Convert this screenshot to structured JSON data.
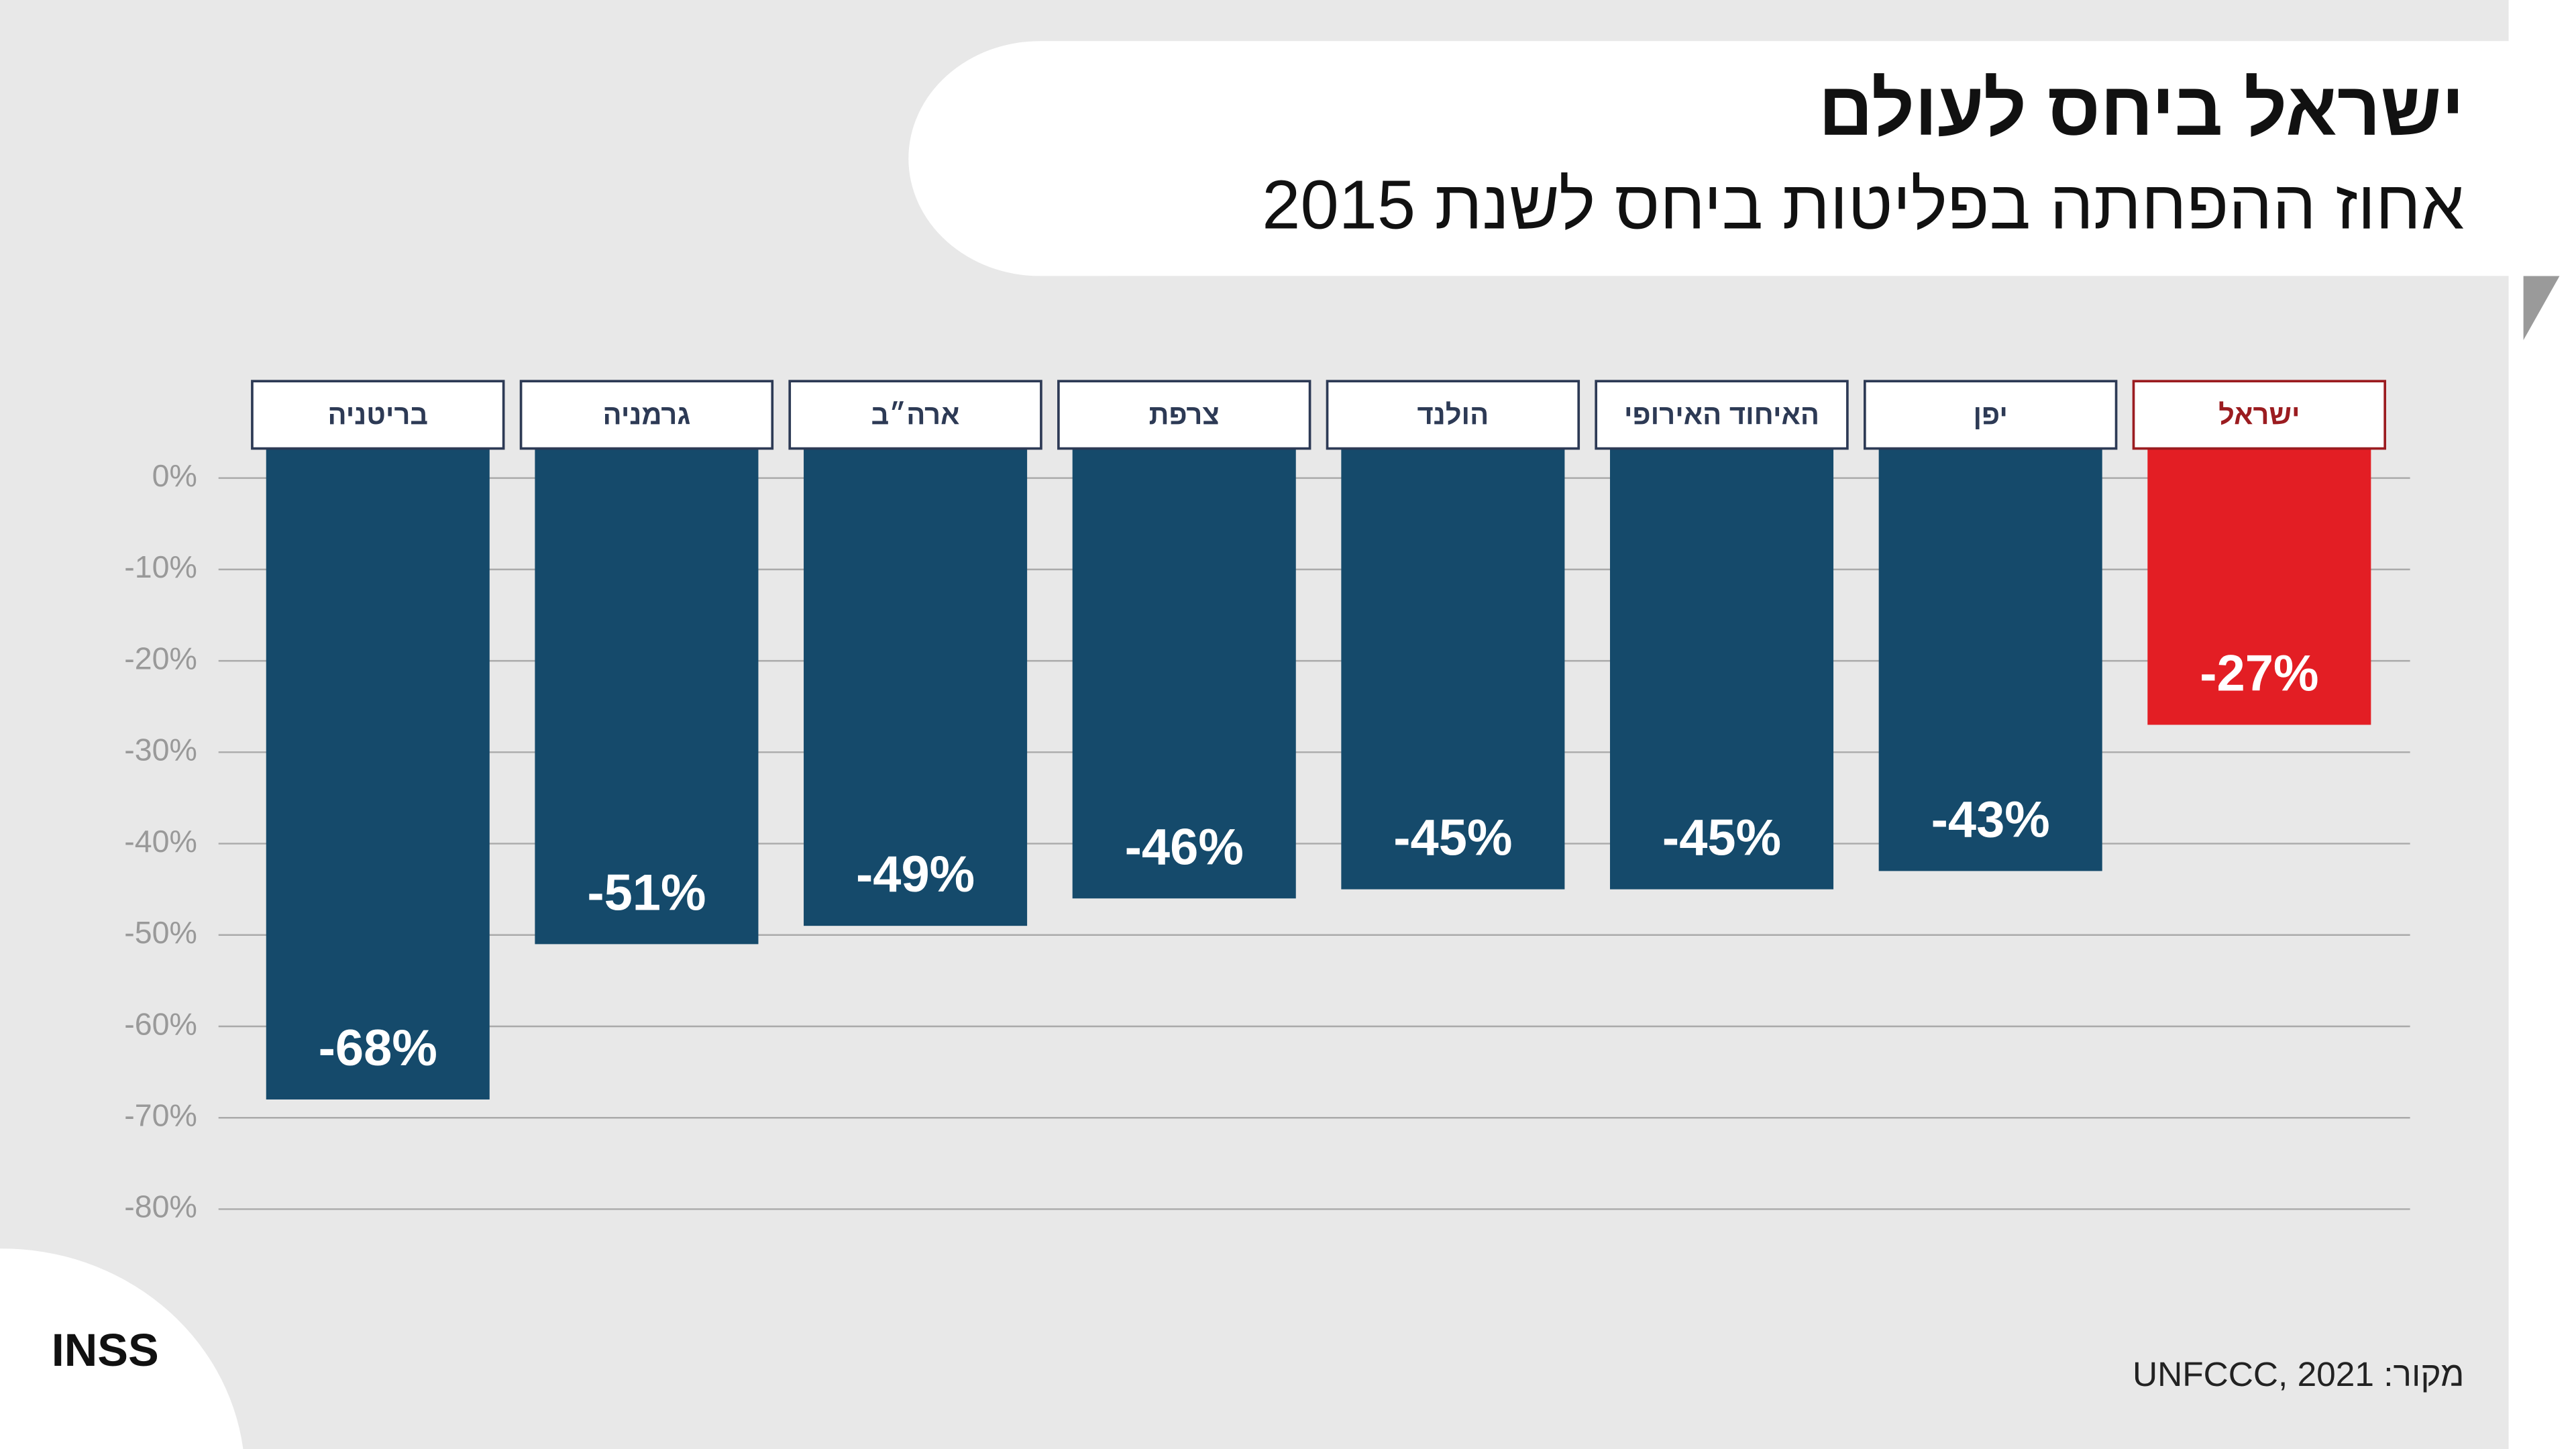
{
  "chart_data": {
    "type": "bar",
    "title": "ישראל ביחס לעולם",
    "subtitle": "אחוז ההפחתה בפליטות ביחס לשנת 2015",
    "categories": [
      "בריטניה",
      "גרמניה",
      "ארה״ב",
      "צרפת",
      "הולנד",
      "האיחוד האירופי",
      "יפן",
      "ישראל"
    ],
    "values": [
      -68,
      -51,
      -49,
      -46,
      -45,
      -45,
      -43,
      -27
    ],
    "value_labels": [
      "-68%",
      "-51%",
      "-49%",
      "-46%",
      "-45%",
      "-45%",
      "-43%",
      "-27%"
    ],
    "colors": [
      "#154a6b",
      "#154a6b",
      "#154a6b",
      "#154a6b",
      "#154a6b",
      "#154a6b",
      "#154a6b",
      "#e31e24"
    ],
    "ylim": [
      -80,
      0
    ],
    "yticks": [
      {
        "value": 0,
        "label": "0%"
      },
      {
        "value": -10,
        "label": "-10%"
      },
      {
        "value": -20,
        "label": "-20%"
      },
      {
        "value": -30,
        "label": "-30%"
      },
      {
        "value": -40,
        "label": "-40%"
      },
      {
        "value": -50,
        "label": "-50%"
      },
      {
        "value": -60,
        "label": "-60%"
      },
      {
        "value": -70,
        "label": "-70%"
      },
      {
        "value": -80,
        "label": "-80%"
      }
    ],
    "grid": true,
    "source": "מקור: UNFCCC, 2021",
    "logo": "INSS"
  }
}
